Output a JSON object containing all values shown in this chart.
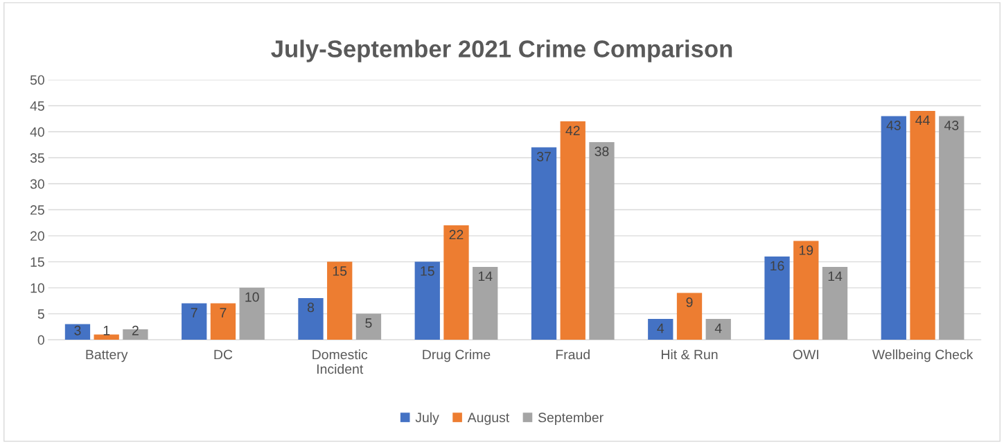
{
  "chart_data": {
    "type": "bar",
    "title": "July-September 2021 Crime Comparison",
    "categories": [
      "Battery",
      "DC",
      "Domestic\nIncident",
      "Drug Crime",
      "Fraud",
      "Hit & Run",
      "OWI",
      "Wellbeing Check"
    ],
    "series": [
      {
        "name": "July",
        "color": "#4472c4",
        "values": [
          3,
          7,
          8,
          15,
          37,
          4,
          16,
          43
        ]
      },
      {
        "name": "August",
        "color": "#ed7d31",
        "values": [
          1,
          7,
          15,
          22,
          42,
          9,
          19,
          44
        ]
      },
      {
        "name": "September",
        "color": "#a5a5a5",
        "values": [
          2,
          10,
          5,
          14,
          38,
          4,
          14,
          43
        ]
      }
    ],
    "ylim": [
      0,
      50
    ],
    "yticks": [
      0,
      5,
      10,
      15,
      20,
      25,
      30,
      35,
      40,
      45,
      50
    ],
    "grid": "y",
    "legend": "bottom",
    "data_labels": true
  }
}
